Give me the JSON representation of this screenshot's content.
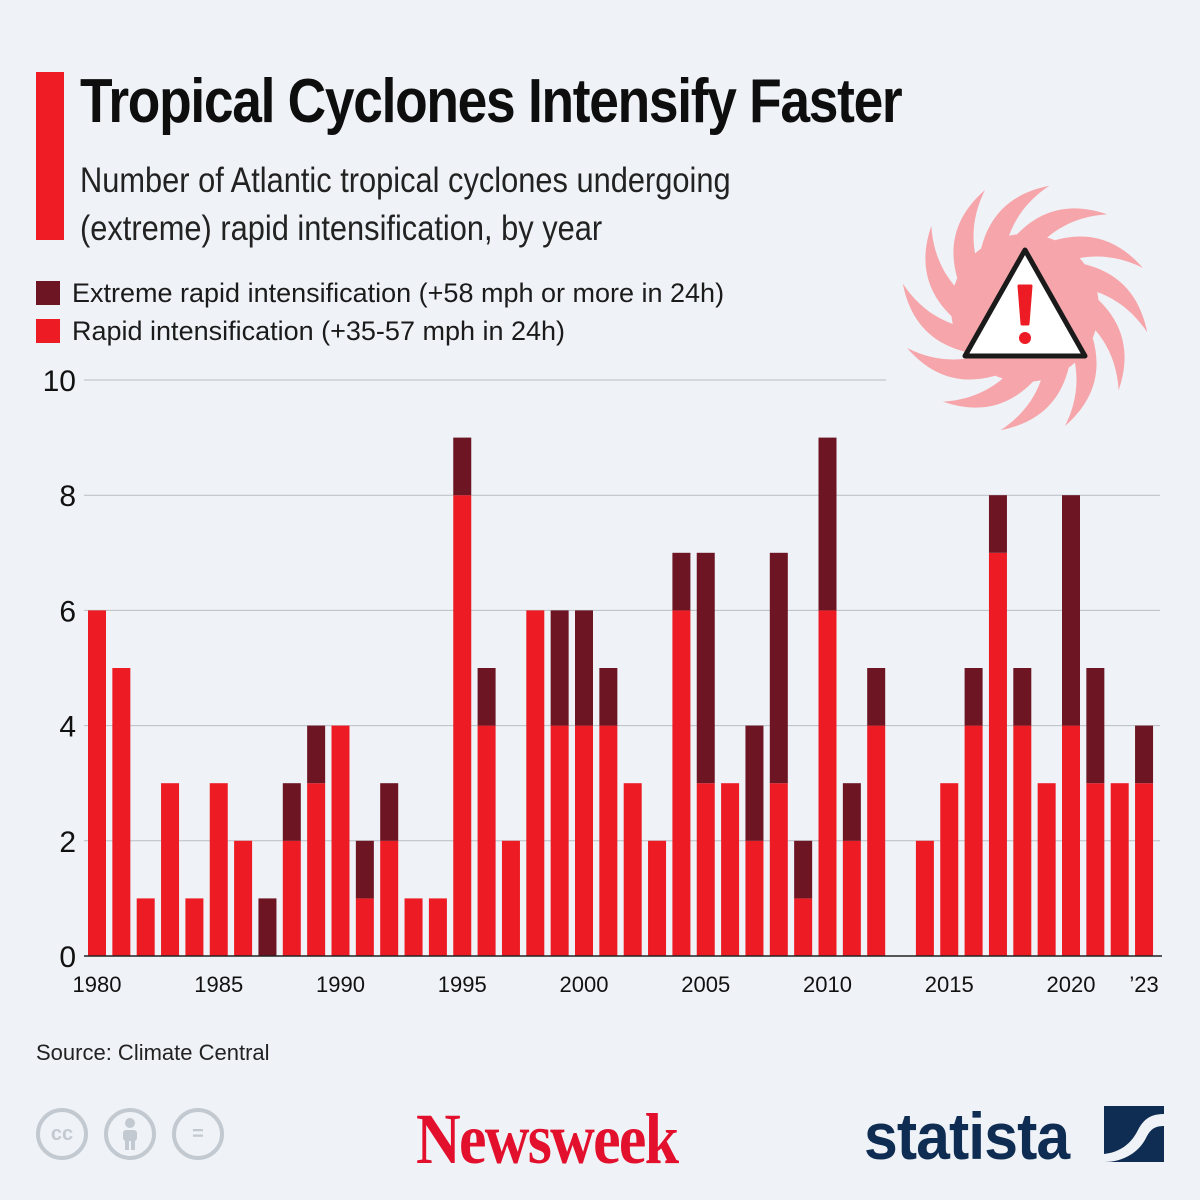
{
  "header": {
    "title": "Tropical Cyclones Intensify Faster",
    "subtitle": "Number of Atlantic tropical cyclones undergoing (extreme) rapid intensification, by year"
  },
  "legend": {
    "extreme_label": "Extreme rapid intensification (+58 mph or more in 24h)",
    "rapid_label": "Rapid intensification (+35-57 mph in 24h)"
  },
  "colors": {
    "rapid": "#ed1c24",
    "extreme": "#6d1522",
    "accent": "#ef1c25",
    "grid": "#b9bec5",
    "cyclone": "#f6a6ab"
  },
  "chart_data": {
    "type": "bar",
    "stacked": true,
    "title": "Tropical Cyclones Intensify Faster",
    "xlabel": "",
    "ylabel": "",
    "ylim": [
      0,
      10
    ],
    "yticks": [
      0,
      2,
      4,
      6,
      8,
      10
    ],
    "categories": [
      1980,
      1981,
      1982,
      1983,
      1984,
      1985,
      1986,
      1987,
      1988,
      1989,
      1990,
      1991,
      1992,
      1993,
      1994,
      1995,
      1996,
      1997,
      1998,
      1999,
      2000,
      2001,
      2002,
      2003,
      2004,
      2005,
      2006,
      2007,
      2008,
      2009,
      2010,
      2011,
      2012,
      2013,
      2014,
      2015,
      2016,
      2017,
      2018,
      2019,
      2020,
      2021,
      2022,
      2023
    ],
    "x_tick_labels": [
      {
        "year": 1980,
        "label": "1980"
      },
      {
        "year": 1985,
        "label": "1985"
      },
      {
        "year": 1990,
        "label": "1990"
      },
      {
        "year": 1995,
        "label": "1995"
      },
      {
        "year": 2000,
        "label": "2000"
      },
      {
        "year": 2005,
        "label": "2005"
      },
      {
        "year": 2010,
        "label": "2010"
      },
      {
        "year": 2015,
        "label": "2015"
      },
      {
        "year": 2020,
        "label": "2020"
      },
      {
        "year": 2023,
        "label": "’23"
      }
    ],
    "series": [
      {
        "name": "Rapid intensification (+35-57 mph in 24h)",
        "values": [
          6,
          5,
          1,
          3,
          1,
          3,
          2,
          0,
          2,
          3,
          4,
          1,
          2,
          1,
          1,
          8,
          4,
          2,
          6,
          4,
          4,
          4,
          3,
          2,
          6,
          3,
          3,
          2,
          3,
          1,
          6,
          2,
          4,
          0,
          2,
          3,
          4,
          7,
          4,
          3,
          4,
          3,
          3,
          3
        ]
      },
      {
        "name": "Extreme rapid intensification (+58 mph or more in 24h)",
        "values": [
          0,
          0,
          0,
          0,
          0,
          0,
          0,
          1,
          1,
          1,
          0,
          1,
          1,
          0,
          0,
          1,
          1,
          0,
          0,
          2,
          2,
          1,
          0,
          0,
          1,
          4,
          0,
          2,
          4,
          1,
          3,
          1,
          1,
          0,
          0,
          0,
          1,
          1,
          1,
          0,
          4,
          2,
          0,
          1
        ]
      }
    ]
  },
  "footer": {
    "source": "Source: Climate Central",
    "cc_label": "cc",
    "eq_label": "=",
    "newsweek": "Newsweek",
    "statista": "statista"
  }
}
